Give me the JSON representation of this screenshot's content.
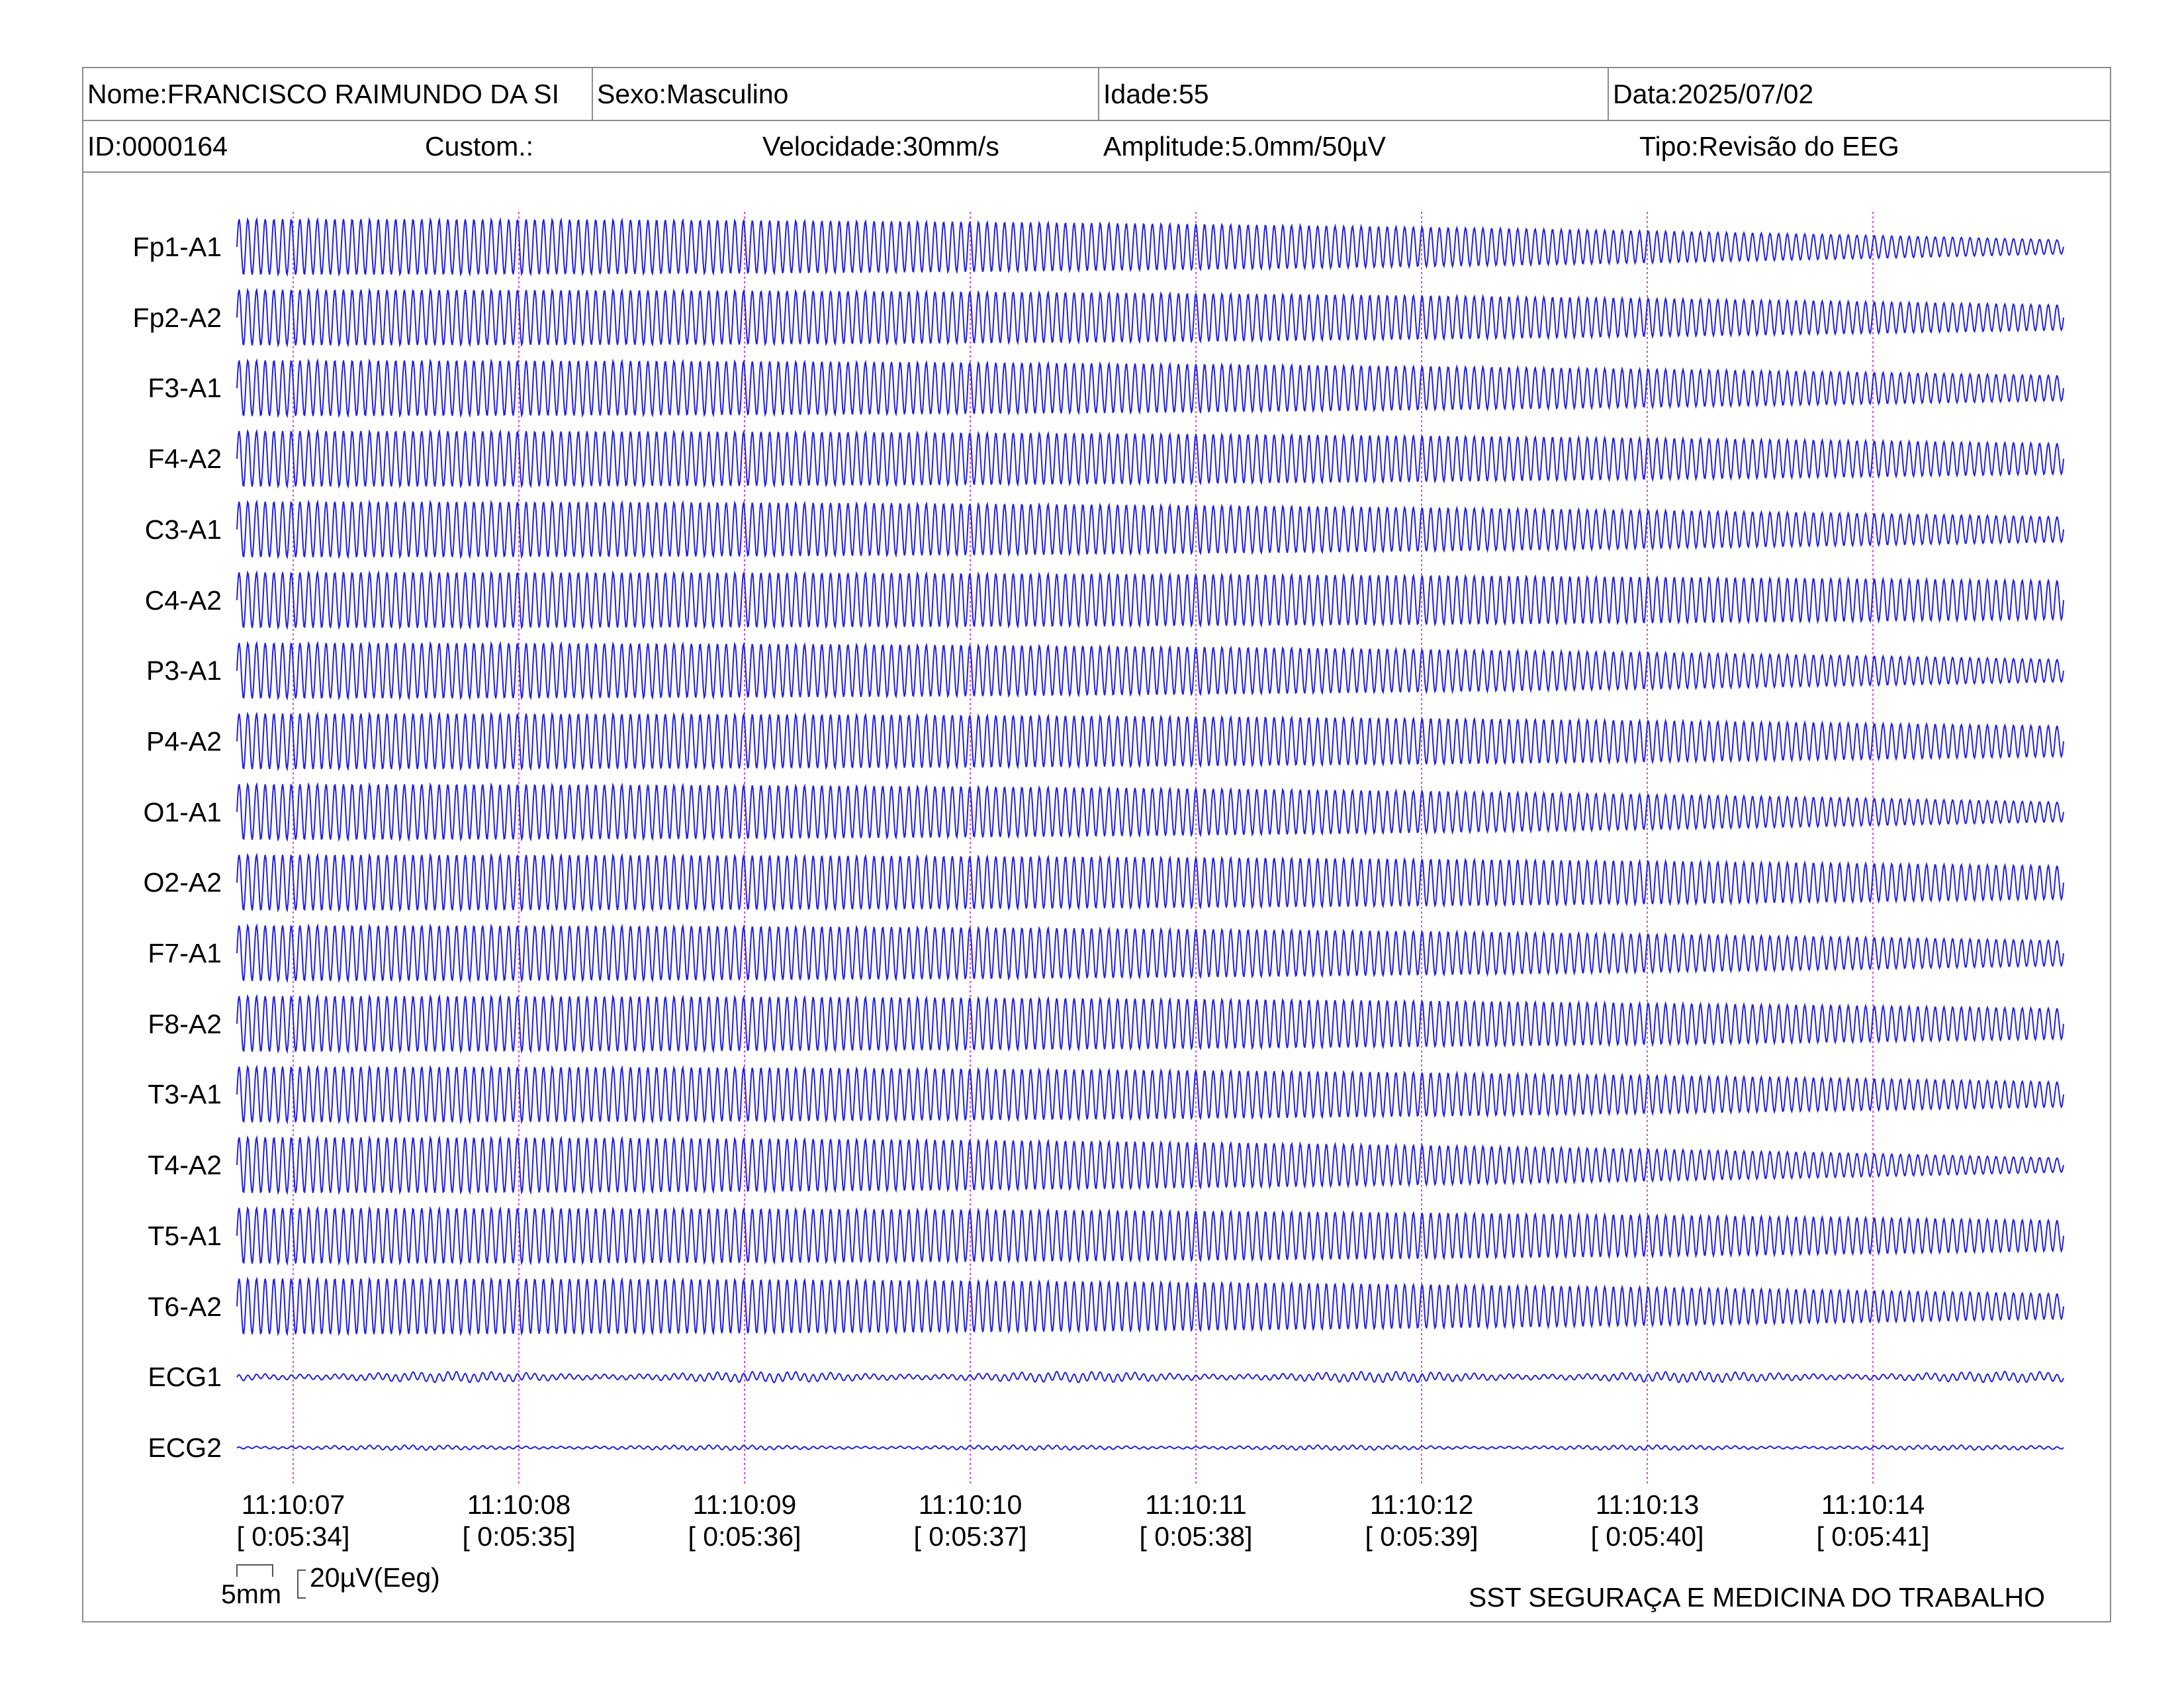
{
  "header": {
    "row1": [
      {
        "label": "Nome:",
        "value": "FRANCISCO RAIMUNDO DA SI"
      },
      {
        "label": "Sexo:",
        "value": "Masculino"
      },
      {
        "label": "Idade:",
        "value": "55"
      },
      {
        "label": "Data:",
        "value": "2025/07/02"
      }
    ],
    "row2": [
      {
        "label": "ID:",
        "value": "0000164"
      },
      {
        "label": "Custom.:",
        "value": ""
      },
      {
        "label": "Velocidade:",
        "value": "30mm/s"
      },
      {
        "label": "Amplitude:",
        "value": "5.0mm/50µV"
      },
      {
        "label": "Tipo:",
        "value": "Revisão do EEG"
      }
    ]
  },
  "channels": [
    {
      "name": "Fp1-A1",
      "amplitude": 1.0,
      "decay": 0.75,
      "type": "eeg"
    },
    {
      "name": "Fp2-A2",
      "amplitude": 1.0,
      "decay": 0.55,
      "type": "eeg"
    },
    {
      "name": "F3-A1",
      "amplitude": 1.0,
      "decay": 0.55,
      "type": "eeg"
    },
    {
      "name": "F4-A2",
      "amplitude": 1.0,
      "decay": 0.45,
      "type": "eeg"
    },
    {
      "name": "C3-A1",
      "amplitude": 1.0,
      "decay": 0.55,
      "type": "eeg"
    },
    {
      "name": "C4-A2",
      "amplitude": 1.0,
      "decay": 0.3,
      "type": "eeg"
    },
    {
      "name": "P3-A1",
      "amplitude": 1.0,
      "decay": 0.6,
      "type": "eeg"
    },
    {
      "name": "P4-A2",
      "amplitude": 1.0,
      "decay": 0.45,
      "type": "eeg"
    },
    {
      "name": "O1-A1",
      "amplitude": 1.0,
      "decay": 0.65,
      "type": "eeg"
    },
    {
      "name": "O2-A2",
      "amplitude": 1.0,
      "decay": 0.4,
      "type": "eeg"
    },
    {
      "name": "F7-A1",
      "amplitude": 1.0,
      "decay": 0.55,
      "type": "eeg"
    },
    {
      "name": "F8-A2",
      "amplitude": 1.0,
      "decay": 0.45,
      "type": "eeg"
    },
    {
      "name": "T3-A1",
      "amplitude": 1.0,
      "decay": 0.55,
      "type": "eeg"
    },
    {
      "name": "T4-A2",
      "amplitude": 1.0,
      "decay": 0.75,
      "type": "eeg"
    },
    {
      "name": "T5-A1",
      "amplitude": 1.0,
      "decay": 0.45,
      "type": "eeg"
    },
    {
      "name": "T6-A2",
      "amplitude": 1.0,
      "decay": 0.55,
      "type": "eeg"
    },
    {
      "name": "ECG1",
      "amplitude": 0.15,
      "decay": 0.0,
      "type": "ecg"
    },
    {
      "name": "ECG2",
      "amplitude": 0.07,
      "decay": 0.0,
      "type": "ecg"
    }
  ],
  "time_markers": [
    {
      "clock": "11:10:07",
      "elapsed": "[ 0:05:34]"
    },
    {
      "clock": "11:10:08",
      "elapsed": "[ 0:05:35]"
    },
    {
      "clock": "11:10:09",
      "elapsed": "[ 0:05:36]"
    },
    {
      "clock": "11:10:10",
      "elapsed": "[ 0:05:37]"
    },
    {
      "clock": "11:10:11",
      "elapsed": "[ 0:05:38]"
    },
    {
      "clock": "11:10:12",
      "elapsed": "[ 0:05:39]"
    },
    {
      "clock": "11:10:13",
      "elapsed": "[ 0:05:40]"
    },
    {
      "clock": "11:10:14",
      "elapsed": "[ 0:05:41]"
    }
  ],
  "calibration": {
    "time_scale": "5mm",
    "amplitude_scale": "20µV(Eeg)"
  },
  "footer": {
    "organization": "SST SEGURAÇA E MEDICINA DO TRABALHO"
  },
  "colors": {
    "trace": "#2020e0",
    "marker_line": "#e040e0",
    "border": "#8c8c8c"
  }
}
